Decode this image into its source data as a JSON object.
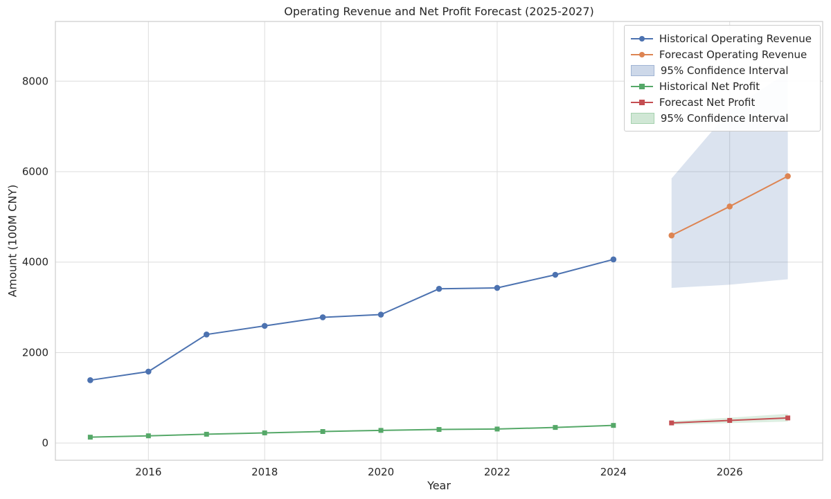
{
  "chart_data": {
    "type": "line",
    "title": "Operating Revenue and Net Profit Forecast (2025-2027)",
    "xlabel": "Year",
    "ylabel": "Amount (100M CNY)",
    "xlim": [
      2014.4,
      2027.6
    ],
    "ylim": [
      -380,
      9320
    ],
    "x_ticks": [
      2016,
      2018,
      2020,
      2022,
      2024,
      2026
    ],
    "y_ticks": [
      0,
      2000,
      4000,
      6000,
      8000
    ],
    "grid": true,
    "legend_position": "upper right",
    "colors": {
      "historical_revenue": "#4C72B0",
      "forecast_revenue": "#DD8452",
      "historical_profit": "#55A868",
      "forecast_profit": "#C44E52",
      "revenue_ci": "#4C72B0",
      "profit_ci": "#55A868"
    },
    "series": [
      {
        "name": "Historical Operating Revenue",
        "type": "line",
        "marker": "circle",
        "color": "#4C72B0",
        "x": [
          2015,
          2016,
          2017,
          2018,
          2019,
          2020,
          2021,
          2022,
          2023,
          2024
        ],
        "y": [
          1390,
          1580,
          2400,
          2590,
          2780,
          2840,
          3410,
          3430,
          3720,
          4060
        ]
      },
      {
        "name": "Forecast Operating Revenue",
        "type": "line",
        "marker": "circle",
        "color": "#DD8452",
        "x": [
          2025,
          2026,
          2027
        ],
        "y": [
          4590,
          5230,
          5900
        ]
      },
      {
        "name": "95% Confidence Interval",
        "type": "band",
        "color": "#4C72B0",
        "opacity": 0.2,
        "x": [
          2025,
          2026,
          2027
        ],
        "lower": [
          3430,
          3500,
          3620
        ],
        "upper": [
          5850,
          7350,
          8200
        ]
      },
      {
        "name": "Historical Net Profit",
        "type": "line",
        "marker": "square",
        "color": "#55A868",
        "x": [
          2015,
          2016,
          2017,
          2018,
          2019,
          2020,
          2021,
          2022,
          2023,
          2024
        ],
        "y": [
          130,
          160,
          195,
          225,
          255,
          280,
          300,
          310,
          345,
          390
        ]
      },
      {
        "name": "Forecast Net Profit",
        "type": "line",
        "marker": "square",
        "color": "#C44E52",
        "x": [
          2025,
          2026,
          2027
        ],
        "y": [
          445,
          500,
          555
        ]
      },
      {
        "name": "95% Confidence Interval",
        "type": "band",
        "color": "#55A868",
        "opacity": 0.2,
        "x": [
          2025,
          2026,
          2027
        ],
        "lower": [
          405,
          440,
          475
        ],
        "upper": [
          485,
          560,
          645
        ]
      }
    ]
  }
}
